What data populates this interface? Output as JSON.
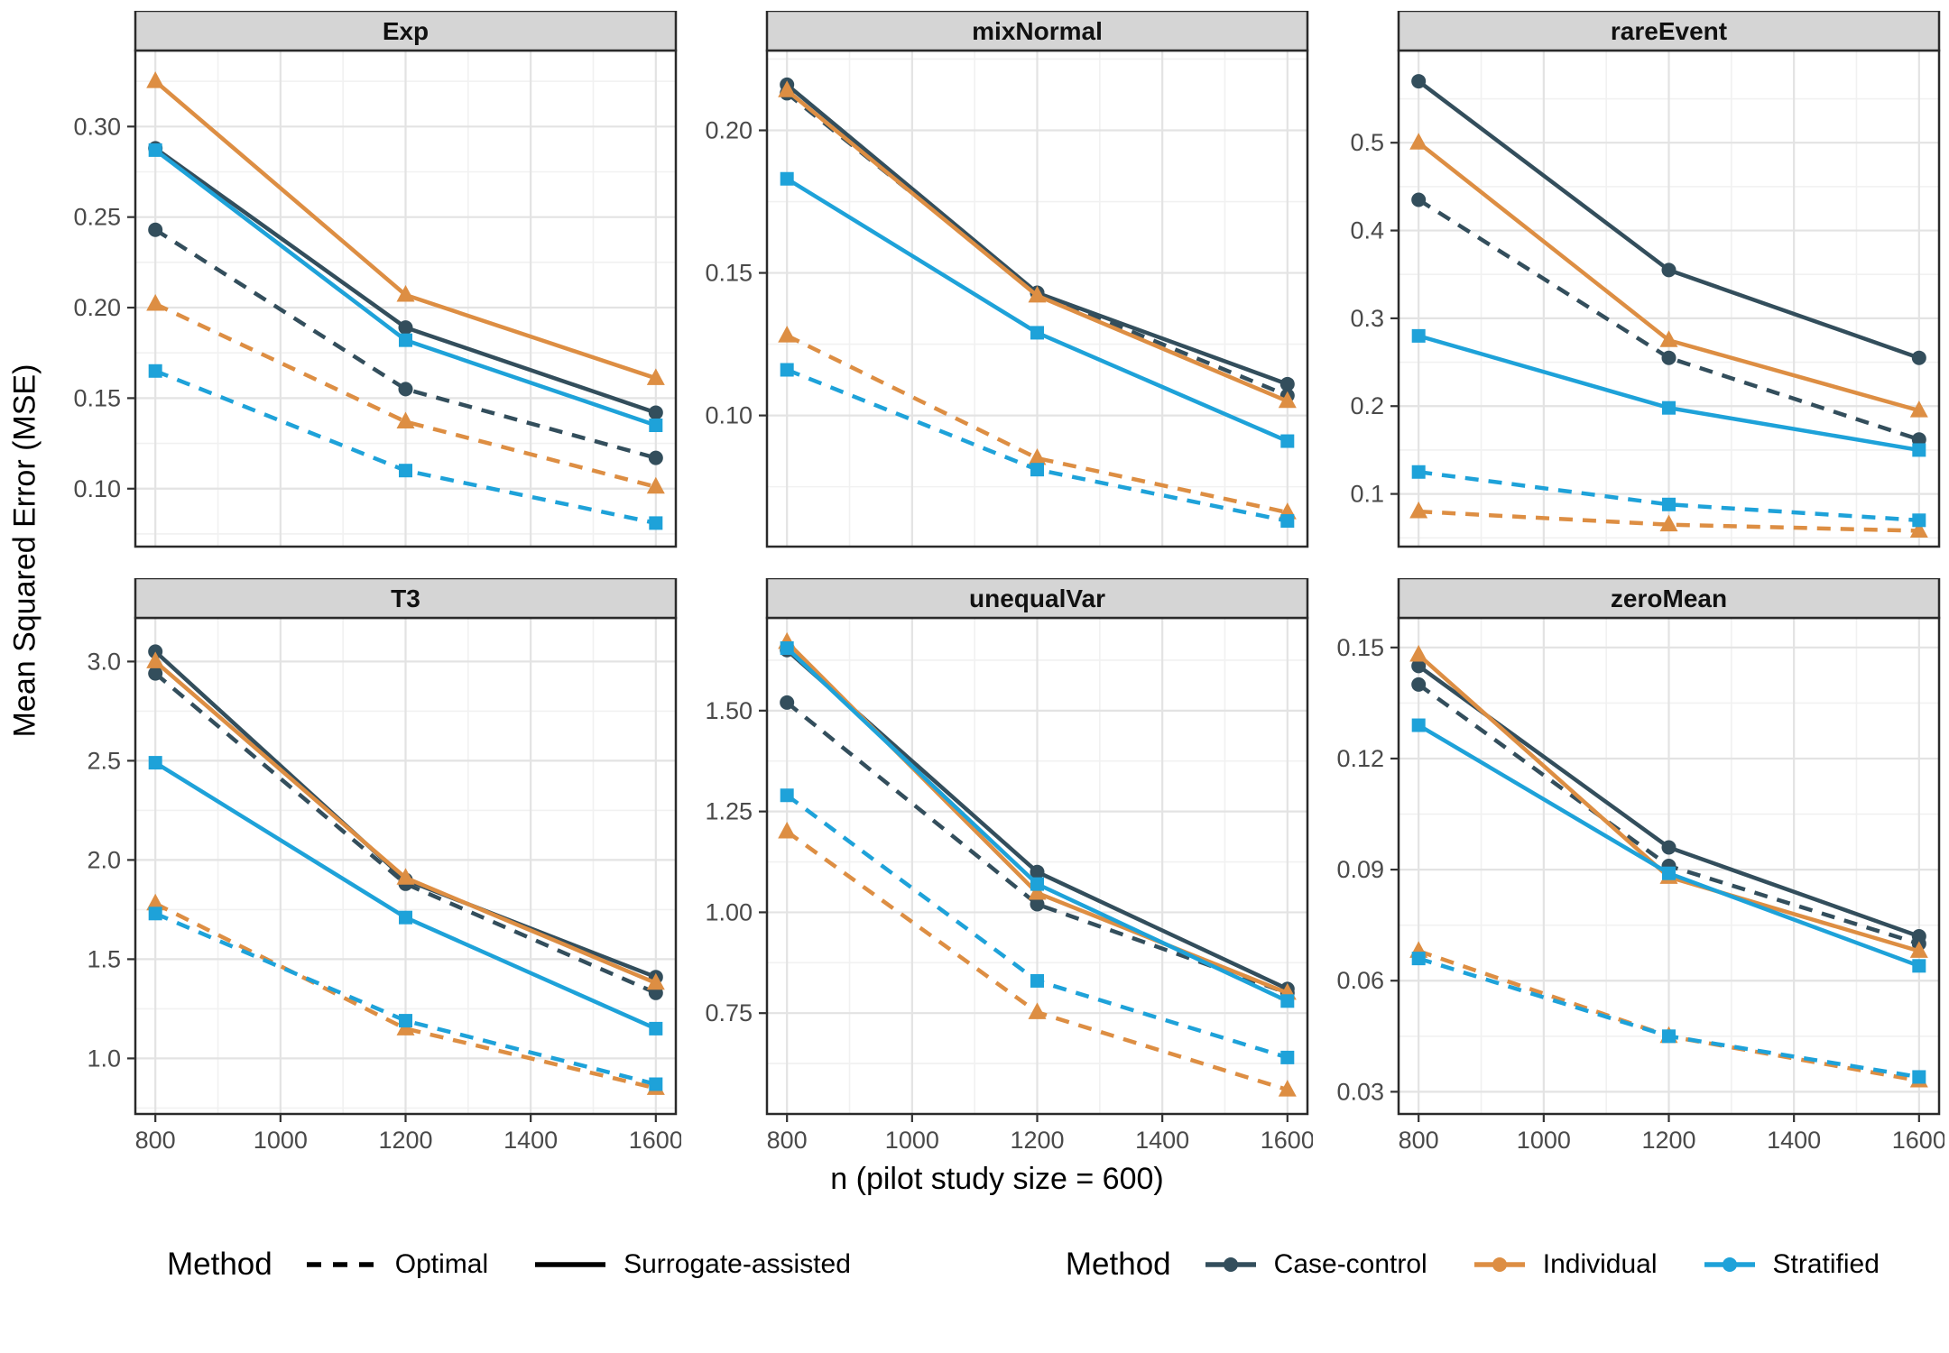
{
  "figure": {
    "y_axis_title": "Mean Squared Error (MSE)",
    "x_axis_title": "n (pilot study size = 600)",
    "x_ticks": [
      800,
      1000,
      1200,
      1400,
      1600
    ],
    "x_tick_labels": [
      "800",
      "1000",
      "1200",
      "1400",
      "1600"
    ],
    "x_range": [
      768,
      1632
    ]
  },
  "colors": {
    "case_control": "#334e5c",
    "individual": "#dd8e43",
    "stratified": "#1ea2d9",
    "linetype_key": "#000000",
    "strip_bg": "#d5d5d5",
    "panel_border": "#2a2a2a",
    "grid_major": "#e3e3e3",
    "grid_minor": "#f1f1f1",
    "tick_label": "#4a4a4a"
  },
  "legends": {
    "linetype": {
      "title": "Method",
      "items": [
        {
          "label": "Optimal",
          "linetype": "dashed"
        },
        {
          "label": "Surrogate-assisted",
          "linetype": "solid"
        }
      ]
    },
    "color": {
      "title": "Method",
      "items": [
        {
          "label": "Case-control",
          "color_key": "case_control",
          "marker": "circle"
        },
        {
          "label": "Individual",
          "color_key": "individual",
          "marker": "circle"
        },
        {
          "label": "Stratified",
          "color_key": "stratified",
          "marker": "circle"
        }
      ]
    }
  },
  "chart_data": [
    {
      "type": "line",
      "title": "Exp",
      "x": [
        800,
        1200,
        1600
      ],
      "ylim": [
        0.068,
        0.342
      ],
      "yticks": [
        0.1,
        0.15,
        0.2,
        0.25,
        0.3
      ],
      "ytick_labels": [
        "0.10",
        "0.15",
        "0.20",
        "0.25",
        "0.30"
      ],
      "series": [
        {
          "method": "Case-control",
          "linetype": "dashed",
          "marker": "circle",
          "color_key": "case_control",
          "values": [
            0.243,
            0.155,
            0.117
          ]
        },
        {
          "method": "Individual",
          "linetype": "dashed",
          "marker": "triangle",
          "color_key": "individual",
          "values": [
            0.202,
            0.137,
            0.101
          ]
        },
        {
          "method": "Stratified",
          "linetype": "dashed",
          "marker": "square",
          "color_key": "stratified",
          "values": [
            0.165,
            0.11,
            0.081
          ]
        },
        {
          "method": "Case-control",
          "linetype": "solid",
          "marker": "circle",
          "color_key": "case_control",
          "values": [
            0.288,
            0.189,
            0.142
          ]
        },
        {
          "method": "Individual",
          "linetype": "solid",
          "marker": "triangle",
          "color_key": "individual",
          "values": [
            0.325,
            0.207,
            0.161
          ]
        },
        {
          "method": "Stratified",
          "linetype": "solid",
          "marker": "square",
          "color_key": "stratified",
          "values": [
            0.287,
            0.182,
            0.135
          ]
        }
      ]
    },
    {
      "type": "line",
      "title": "mixNormal",
      "x": [
        800,
        1200,
        1600
      ],
      "ylim": [
        0.054,
        0.228
      ],
      "yticks": [
        0.1,
        0.15,
        0.2
      ],
      "ytick_labels": [
        "0.10",
        "0.15",
        "0.20"
      ],
      "series": [
        {
          "method": "Case-control",
          "linetype": "dashed",
          "marker": "circle",
          "color_key": "case_control",
          "values": [
            0.213,
            0.143,
            0.107
          ]
        },
        {
          "method": "Individual",
          "linetype": "dashed",
          "marker": "triangle",
          "color_key": "individual",
          "values": [
            0.128,
            0.085,
            0.066
          ]
        },
        {
          "method": "Stratified",
          "linetype": "dashed",
          "marker": "square",
          "color_key": "stratified",
          "values": [
            0.116,
            0.081,
            0.063
          ]
        },
        {
          "method": "Case-control",
          "linetype": "solid",
          "marker": "circle",
          "color_key": "case_control",
          "values": [
            0.216,
            0.143,
            0.111
          ]
        },
        {
          "method": "Individual",
          "linetype": "solid",
          "marker": "triangle",
          "color_key": "individual",
          "values": [
            0.214,
            0.142,
            0.105
          ]
        },
        {
          "method": "Stratified",
          "linetype": "solid",
          "marker": "square",
          "color_key": "stratified",
          "values": [
            0.183,
            0.129,
            0.091
          ]
        }
      ]
    },
    {
      "type": "line",
      "title": "rareEvent",
      "x": [
        800,
        1200,
        1600
      ],
      "ylim": [
        0.04,
        0.605
      ],
      "yticks": [
        0.1,
        0.2,
        0.3,
        0.4,
        0.5
      ],
      "ytick_labels": [
        "0.1",
        "0.2",
        "0.3",
        "0.4",
        "0.5"
      ],
      "series": [
        {
          "method": "Case-control",
          "linetype": "dashed",
          "marker": "circle",
          "color_key": "case_control",
          "values": [
            0.435,
            0.255,
            0.162
          ]
        },
        {
          "method": "Individual",
          "linetype": "dashed",
          "marker": "triangle",
          "color_key": "individual",
          "values": [
            0.08,
            0.065,
            0.058
          ]
        },
        {
          "method": "Stratified",
          "linetype": "dashed",
          "marker": "square",
          "color_key": "stratified",
          "values": [
            0.125,
            0.088,
            0.07
          ]
        },
        {
          "method": "Case-control",
          "linetype": "solid",
          "marker": "circle",
          "color_key": "case_control",
          "values": [
            0.57,
            0.355,
            0.255
          ]
        },
        {
          "method": "Individual",
          "linetype": "solid",
          "marker": "triangle",
          "color_key": "individual",
          "values": [
            0.5,
            0.275,
            0.195
          ]
        },
        {
          "method": "Stratified",
          "linetype": "solid",
          "marker": "square",
          "color_key": "stratified",
          "values": [
            0.28,
            0.198,
            0.15
          ]
        }
      ]
    },
    {
      "type": "line",
      "title": "T3",
      "x": [
        800,
        1200,
        1600
      ],
      "ylim": [
        0.72,
        3.22
      ],
      "yticks": [
        1.0,
        1.5,
        2.0,
        2.5,
        3.0
      ],
      "ytick_labels": [
        "1.0",
        "1.5",
        "2.0",
        "2.5",
        "3.0"
      ],
      "series": [
        {
          "method": "Case-control",
          "linetype": "dashed",
          "marker": "circle",
          "color_key": "case_control",
          "values": [
            2.94,
            1.88,
            1.33
          ]
        },
        {
          "method": "Individual",
          "linetype": "dashed",
          "marker": "triangle",
          "color_key": "individual",
          "values": [
            1.78,
            1.15,
            0.85
          ]
        },
        {
          "method": "Stratified",
          "linetype": "dashed",
          "marker": "square",
          "color_key": "stratified",
          "values": [
            1.73,
            1.19,
            0.87
          ]
        },
        {
          "method": "Case-control",
          "linetype": "solid",
          "marker": "circle",
          "color_key": "case_control",
          "values": [
            3.05,
            1.9,
            1.41
          ]
        },
        {
          "method": "Individual",
          "linetype": "solid",
          "marker": "triangle",
          "color_key": "individual",
          "values": [
            3.0,
            1.91,
            1.38
          ]
        },
        {
          "method": "Stratified",
          "linetype": "solid",
          "marker": "square",
          "color_key": "stratified",
          "values": [
            2.49,
            1.71,
            1.15
          ]
        }
      ]
    },
    {
      "type": "line",
      "title": "unequalVar",
      "x": [
        800,
        1200,
        1600
      ],
      "ylim": [
        0.5,
        1.73
      ],
      "yticks": [
        0.75,
        1.0,
        1.25,
        1.5
      ],
      "ytick_labels": [
        "0.75",
        "1.00",
        "1.25",
        "1.50"
      ],
      "series": [
        {
          "method": "Case-control",
          "linetype": "dashed",
          "marker": "circle",
          "color_key": "case_control",
          "values": [
            1.52,
            1.02,
            0.8
          ]
        },
        {
          "method": "Individual",
          "linetype": "dashed",
          "marker": "triangle",
          "color_key": "individual",
          "values": [
            1.2,
            0.752,
            0.56
          ]
        },
        {
          "method": "Stratified",
          "linetype": "dashed",
          "marker": "square",
          "color_key": "stratified",
          "values": [
            1.29,
            0.83,
            0.64
          ]
        },
        {
          "method": "Case-control",
          "linetype": "solid",
          "marker": "circle",
          "color_key": "case_control",
          "values": [
            1.65,
            1.1,
            0.81
          ]
        },
        {
          "method": "Individual",
          "linetype": "solid",
          "marker": "triangle",
          "color_key": "individual",
          "values": [
            1.67,
            1.048,
            0.8
          ]
        },
        {
          "method": "Stratified",
          "linetype": "solid",
          "marker": "square",
          "color_key": "stratified",
          "values": [
            1.655,
            1.07,
            0.78
          ]
        }
      ]
    },
    {
      "type": "line",
      "title": "zeroMean",
      "x": [
        800,
        1200,
        1600
      ],
      "ylim": [
        0.024,
        0.158
      ],
      "yticks": [
        0.03,
        0.06,
        0.09,
        0.12,
        0.15
      ],
      "ytick_labels": [
        "0.03",
        "0.06",
        "0.09",
        "0.12",
        "0.15"
      ],
      "series": [
        {
          "method": "Case-control",
          "linetype": "dashed",
          "marker": "circle",
          "color_key": "case_control",
          "values": [
            0.14,
            0.091,
            0.07
          ]
        },
        {
          "method": "Individual",
          "linetype": "dashed",
          "marker": "triangle",
          "color_key": "individual",
          "values": [
            0.068,
            0.045,
            0.033
          ]
        },
        {
          "method": "Stratified",
          "linetype": "dashed",
          "marker": "square",
          "color_key": "stratified",
          "values": [
            0.066,
            0.045,
            0.034
          ]
        },
        {
          "method": "Case-control",
          "linetype": "solid",
          "marker": "circle",
          "color_key": "case_control",
          "values": [
            0.145,
            0.096,
            0.072
          ]
        },
        {
          "method": "Individual",
          "linetype": "solid",
          "marker": "triangle",
          "color_key": "individual",
          "values": [
            0.148,
            0.088,
            0.068
          ]
        },
        {
          "method": "Stratified",
          "linetype": "solid",
          "marker": "square",
          "color_key": "stratified",
          "values": [
            0.129,
            0.089,
            0.064
          ]
        }
      ]
    }
  ]
}
